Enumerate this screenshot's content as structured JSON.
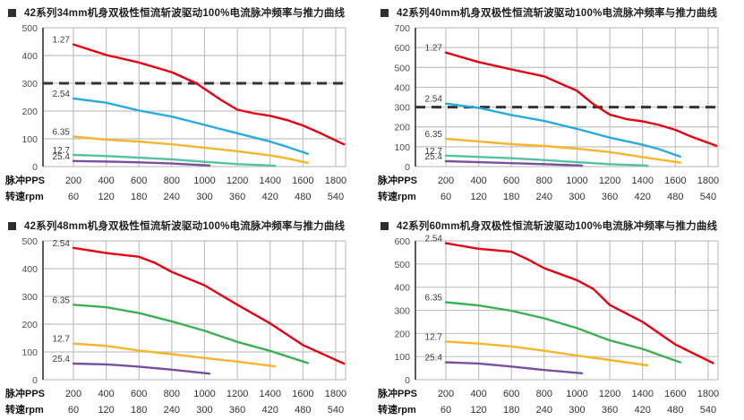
{
  "page": {
    "background": "#ffffff"
  },
  "colors": {
    "grid": "#c2c2c2",
    "axis": "#4a4a4a",
    "dashed_line": "#333333",
    "tick_text": "#4d4d4d",
    "curve_label_text": "#3d3d3d",
    "title_text": "#1f1f1f",
    "red": "#e60012",
    "blue": "#29abe2",
    "amber": "#f7b52c",
    "teal": "#53c3a3",
    "green": "#3bb054",
    "purple": "#7a4f9d"
  },
  "chart_data": [
    {
      "type": "line",
      "title": "42系列34mm机身双极性恒流斩波驱动100%电流脉冲频率与推力曲线",
      "xlabel_pps": "脉冲PPS",
      "xlabel_rpm": "转速rpm",
      "pps_ticks": [
        200,
        400,
        600,
        800,
        1000,
        1200,
        1400,
        1600,
        1800
      ],
      "rpm_ticks": [
        60,
        120,
        180,
        240,
        300,
        360,
        420,
        480,
        540
      ],
      "y_axis": {
        "min": 0,
        "max": 500,
        "step": 100
      },
      "dashed_line_y": 300,
      "grid": true,
      "series": [
        {
          "label": "1.27",
          "color": "#e60012",
          "points": [
            [
              200,
              440
            ],
            [
              400,
              402
            ],
            [
              600,
              375
            ],
            [
              800,
              340
            ],
            [
              950,
              300
            ],
            [
              1100,
              240
            ],
            [
              1200,
              205
            ],
            [
              1300,
              192
            ],
            [
              1400,
              183
            ],
            [
              1500,
              168
            ],
            [
              1600,
              148
            ],
            [
              1700,
              122
            ],
            [
              1850,
              80
            ]
          ]
        },
        {
          "label": "2.54",
          "color": "#29abe2",
          "points": [
            [
              200,
              245
            ],
            [
              400,
              230
            ],
            [
              600,
              202
            ],
            [
              800,
              180
            ],
            [
              1000,
              150
            ],
            [
              1200,
              120
            ],
            [
              1400,
              90
            ],
            [
              1500,
              72
            ],
            [
              1630,
              46
            ]
          ]
        },
        {
          "label": "6.35",
          "color": "#f7b52c",
          "points": [
            [
              200,
              108
            ],
            [
              400,
              97
            ],
            [
              600,
              90
            ],
            [
              800,
              80
            ],
            [
              1000,
              68
            ],
            [
              1200,
              55
            ],
            [
              1400,
              40
            ],
            [
              1500,
              30
            ],
            [
              1630,
              13
            ]
          ]
        },
        {
          "label": "12.7",
          "color": "#53c3a3",
          "points": [
            [
              200,
              42
            ],
            [
              400,
              38
            ],
            [
              600,
              32
            ],
            [
              800,
              26
            ],
            [
              1000,
              17
            ],
            [
              1200,
              9
            ],
            [
              1430,
              3
            ]
          ]
        },
        {
          "label": "25.4",
          "color": "#7a4f9d",
          "points": [
            [
              200,
              20
            ],
            [
              400,
              18
            ],
            [
              600,
              15
            ],
            [
              800,
              11
            ],
            [
              1030,
              4
            ]
          ]
        }
      ]
    },
    {
      "type": "line",
      "title": "42系列40mm机身双极性恒流斩波驱动100%电流脉冲频率与推力曲线",
      "xlabel_pps": "脉冲PPS",
      "xlabel_rpm": "转速rpm",
      "pps_ticks": [
        200,
        400,
        600,
        800,
        1000,
        1200,
        1400,
        1600,
        1800
      ],
      "rpm_ticks": [
        60,
        120,
        180,
        240,
        300,
        360,
        420,
        480,
        540
      ],
      "y_axis": {
        "min": 0,
        "max": 700,
        "step": 100
      },
      "dashed_line_y": 300,
      "grid": true,
      "series": [
        {
          "label": "1.27",
          "color": "#e60012",
          "points": [
            [
              200,
              575
            ],
            [
              400,
              527
            ],
            [
              600,
              490
            ],
            [
              800,
              455
            ],
            [
              1000,
              382
            ],
            [
              1100,
              315
            ],
            [
              1200,
              262
            ],
            [
              1300,
              240
            ],
            [
              1400,
              228
            ],
            [
              1500,
              210
            ],
            [
              1600,
              185
            ],
            [
              1700,
              150
            ],
            [
              1850,
              105
            ]
          ]
        },
        {
          "label": "2.54",
          "color": "#29abe2",
          "points": [
            [
              200,
              318
            ],
            [
              400,
              296
            ],
            [
              600,
              260
            ],
            [
              800,
              230
            ],
            [
              1000,
              190
            ],
            [
              1200,
              146
            ],
            [
              1400,
              110
            ],
            [
              1500,
              88
            ],
            [
              1630,
              50
            ]
          ]
        },
        {
          "label": "6.35",
          "color": "#f7b52c",
          "points": [
            [
              200,
              140
            ],
            [
              400,
              127
            ],
            [
              600,
              113
            ],
            [
              800,
              104
            ],
            [
              1000,
              90
            ],
            [
              1200,
              73
            ],
            [
              1400,
              48
            ],
            [
              1630,
              20
            ]
          ]
        },
        {
          "label": "12.7",
          "color": "#53c3a3",
          "points": [
            [
              200,
              55
            ],
            [
              400,
              49
            ],
            [
              600,
              42
            ],
            [
              800,
              33
            ],
            [
              1000,
              22
            ],
            [
              1200,
              12
            ],
            [
              1430,
              5
            ]
          ]
        },
        {
          "label": "25.4",
          "color": "#7a4f9d",
          "points": [
            [
              200,
              27
            ],
            [
              400,
              22
            ],
            [
              600,
              17
            ],
            [
              800,
              12
            ],
            [
              1030,
              5
            ]
          ]
        }
      ]
    },
    {
      "type": "line",
      "title": "42系列48mm机身双极性恒流斩波驱动100%电流脉冲频率与推力曲线",
      "xlabel_pps": "脉冲PPS",
      "xlabel_rpm": "转速rpm",
      "pps_ticks": [
        200,
        400,
        600,
        800,
        1000,
        1200,
        1400,
        1600,
        1800
      ],
      "rpm_ticks": [
        60,
        120,
        180,
        240,
        300,
        360,
        420,
        480,
        540
      ],
      "y_axis": {
        "min": 0,
        "max": 500,
        "step": 100
      },
      "dashed_line_y": null,
      "grid": true,
      "series": [
        {
          "label": "2.54",
          "color": "#e60012",
          "points": [
            [
              200,
              475
            ],
            [
              400,
              456
            ],
            [
              600,
              443
            ],
            [
              700,
              420
            ],
            [
              800,
              388
            ],
            [
              1000,
              340
            ],
            [
              1100,
              305
            ],
            [
              1200,
              270
            ],
            [
              1400,
              203
            ],
            [
              1600,
              125
            ],
            [
              1850,
              58
            ]
          ]
        },
        {
          "label": "6.35",
          "color": "#3bb054",
          "points": [
            [
              200,
              270
            ],
            [
              400,
              261
            ],
            [
              600,
              240
            ],
            [
              800,
              210
            ],
            [
              1000,
              176
            ],
            [
              1200,
              136
            ],
            [
              1400,
              104
            ],
            [
              1630,
              60
            ]
          ]
        },
        {
          "label": "12.7",
          "color": "#f7b52c",
          "points": [
            [
              200,
              130
            ],
            [
              400,
              122
            ],
            [
              600,
              105
            ],
            [
              800,
              92
            ],
            [
              1000,
              78
            ],
            [
              1200,
              65
            ],
            [
              1430,
              48
            ]
          ]
        },
        {
          "label": "25.4",
          "color": "#7a4f9d",
          "points": [
            [
              200,
              58
            ],
            [
              400,
              55
            ],
            [
              600,
              47
            ],
            [
              800,
              36
            ],
            [
              1030,
              22
            ]
          ]
        }
      ]
    },
    {
      "type": "line",
      "title": "42系列60mm机身双极性恒流斩波驱动100%电流脉冲频率与推力曲线",
      "xlabel_pps": "脉冲PPS",
      "xlabel_rpm": "转速rpm",
      "pps_ticks": [
        200,
        400,
        600,
        800,
        1000,
        1200,
        1400,
        1600,
        1800
      ],
      "rpm_ticks": [
        60,
        120,
        180,
        240,
        300,
        360,
        420,
        480,
        540
      ],
      "y_axis": {
        "min": 0,
        "max": 600,
        "step": 100
      },
      "dashed_line_y": null,
      "grid": true,
      "series": [
        {
          "label": "2.54",
          "color": "#e60012",
          "points": [
            [
              200,
              590
            ],
            [
              400,
              566
            ],
            [
              600,
              553
            ],
            [
              700,
              520
            ],
            [
              800,
              482
            ],
            [
              1000,
              430
            ],
            [
              1100,
              392
            ],
            [
              1200,
              323
            ],
            [
              1400,
              250
            ],
            [
              1600,
              152
            ],
            [
              1830,
              72
            ]
          ]
        },
        {
          "label": "6.35",
          "color": "#3bb054",
          "points": [
            [
              200,
              335
            ],
            [
              400,
              321
            ],
            [
              600,
              298
            ],
            [
              800,
              265
            ],
            [
              1000,
              223
            ],
            [
              1200,
              170
            ],
            [
              1400,
              133
            ],
            [
              1630,
              75
            ]
          ]
        },
        {
          "label": "12.7",
          "color": "#f7b52c",
          "points": [
            [
              200,
              165
            ],
            [
              400,
              156
            ],
            [
              600,
              144
            ],
            [
              800,
              125
            ],
            [
              1000,
              104
            ],
            [
              1200,
              85
            ],
            [
              1430,
              62
            ]
          ]
        },
        {
          "label": "25.4",
          "color": "#7a4f9d",
          "points": [
            [
              200,
              75
            ],
            [
              400,
              70
            ],
            [
              600,
              57
            ],
            [
              800,
              42
            ],
            [
              1030,
              28
            ]
          ]
        }
      ]
    }
  ]
}
